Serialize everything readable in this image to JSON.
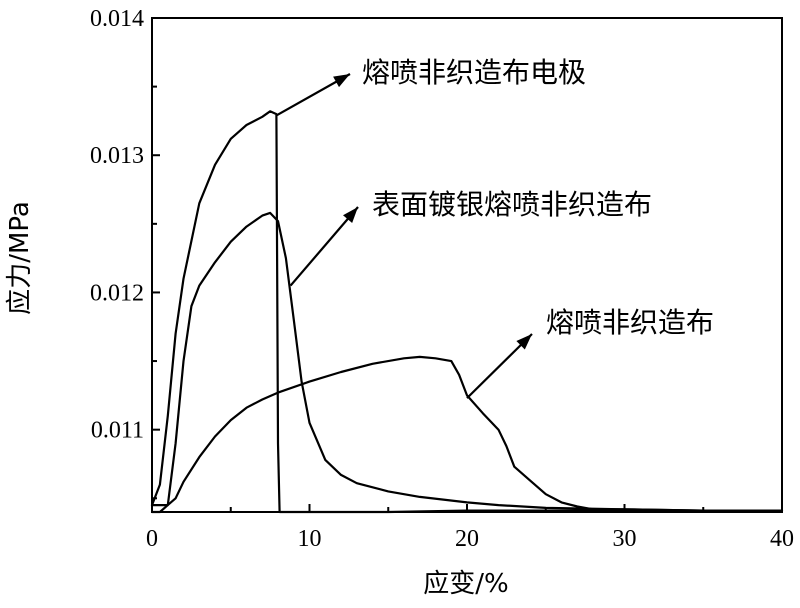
{
  "chart_data": {
    "type": "line",
    "title": "",
    "xlabel": "应变/%",
    "ylabel": "应力/MPa",
    "xlim": [
      0,
      40
    ],
    "ylim": [
      0.0104,
      0.014
    ],
    "xticks": [
      0,
      10,
      20,
      30,
      40
    ],
    "xtick_labels": [
      "0",
      "10",
      "20",
      "30",
      "40"
    ],
    "yticks": [
      0.011,
      0.012,
      0.013,
      0.014
    ],
    "ytick_labels": [
      "0.011",
      "0.012",
      "0.013",
      "0.014"
    ],
    "grid": false,
    "legend": "none",
    "series": [
      {
        "name": "熔喷非织造布电极",
        "x": [
          0,
          0.5,
          1,
          1.5,
          2,
          3,
          4,
          5,
          6,
          7,
          7.5,
          7.9,
          8.0,
          8.1,
          9,
          10,
          12,
          15,
          20,
          25,
          30,
          35,
          40
        ],
        "y": [
          0.01045,
          0.0106,
          0.0111,
          0.0117,
          0.0121,
          0.01265,
          0.01293,
          0.01312,
          0.01322,
          0.01328,
          0.01332,
          0.0133,
          0.0109,
          0.0104,
          0.0104,
          0.0104,
          0.0104,
          0.0104,
          0.01041,
          0.01041,
          0.01041,
          0.01041,
          0.01041
        ]
      },
      {
        "name": "表面镀银熔喷非织造布",
        "x": [
          0,
          0.5,
          1,
          1.5,
          2,
          2.5,
          3,
          4,
          5,
          6,
          7,
          7.5,
          8,
          8.5,
          9,
          9.5,
          10,
          11,
          12,
          13,
          15,
          17,
          20,
          22,
          25,
          30,
          35,
          40
        ],
        "y": [
          0.0104,
          0.0104,
          0.01045,
          0.0109,
          0.0115,
          0.0119,
          0.01205,
          0.01222,
          0.01237,
          0.01248,
          0.01256,
          0.01258,
          0.01252,
          0.01225,
          0.0118,
          0.01135,
          0.01105,
          0.01078,
          0.01067,
          0.01061,
          0.01055,
          0.01051,
          0.01047,
          0.01045,
          0.01043,
          0.01042,
          0.01041,
          0.01041
        ]
      },
      {
        "name": "熔喷非织造布",
        "x": [
          0,
          1,
          1.5,
          2,
          3,
          4,
          5,
          6,
          7,
          8,
          10,
          12,
          14,
          16,
          17,
          18,
          19,
          19.5,
          20,
          21,
          22,
          22.5,
          23,
          24,
          25,
          26,
          27,
          28,
          30,
          35,
          40
        ],
        "y": [
          0.01045,
          0.01045,
          0.0105,
          0.01062,
          0.0108,
          0.01095,
          0.01107,
          0.01116,
          0.01122,
          0.01127,
          0.01135,
          0.01142,
          0.01148,
          0.01152,
          0.01153,
          0.01152,
          0.0115,
          0.0114,
          0.01125,
          0.01112,
          0.011,
          0.01088,
          0.01073,
          0.01063,
          0.01053,
          0.01047,
          0.01044,
          0.01042,
          0.01042,
          0.01041,
          0.01041
        ]
      }
    ],
    "annotations": [
      {
        "text": "熔喷非织造布电极",
        "series": 0,
        "point": [
          7.9,
          0.01329
        ]
      },
      {
        "text": "表面镀银熔喷非织造布",
        "series": 1,
        "point": [
          8.8,
          0.01205
        ]
      },
      {
        "text": "熔喷非织造布",
        "series": 2,
        "point": [
          20.0,
          0.01123
        ]
      }
    ]
  }
}
